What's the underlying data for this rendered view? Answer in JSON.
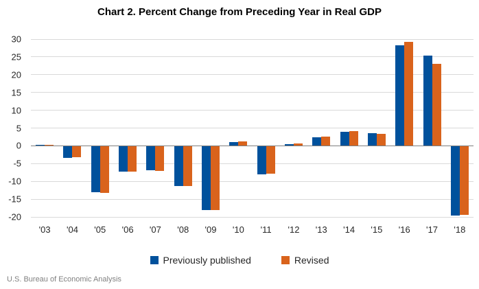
{
  "title": "Chart 2. Percent Change from Preceding Year in Real GDP",
  "footer": "U.S. Bureau of Economic Analysis",
  "colors": {
    "previously_published": "#00519C",
    "revised": "#D9631C",
    "gridline": "#D9D9D9",
    "zero_line": "#7F7F7F",
    "axis_text": "#262626",
    "footer_text": "#808080"
  },
  "legend": {
    "items": [
      {
        "label": "Previously published",
        "color": "#00519C"
      },
      {
        "label": "Revised",
        "color": "#D9631C"
      }
    ]
  },
  "chart_data": {
    "type": "bar",
    "title": "Chart 2. Percent Change from Preceding Year in Real GDP",
    "xlabel": "",
    "ylabel": "",
    "categories": [
      "'03",
      "'04",
      "'05",
      "'06",
      "'07",
      "'08",
      "'09",
      "'10",
      "'11",
      "'12",
      "'13",
      "'14",
      "'15",
      "'16",
      "'17",
      "'18"
    ],
    "series": [
      {
        "name": "Previously published",
        "color": "#00519C",
        "values": [
          0.3,
          -3.4,
          -13.0,
          -7.2,
          -6.8,
          -11.3,
          -18.0,
          1.1,
          -8.0,
          0.4,
          2.3,
          3.9,
          3.5,
          28.2,
          25.4,
          -19.7
        ]
      },
      {
        "name": "Revised",
        "color": "#D9631C",
        "values": [
          0.3,
          -3.2,
          -13.2,
          -7.2,
          -7.0,
          -11.3,
          -18.0,
          1.3,
          -7.9,
          0.7,
          2.6,
          4.2,
          3.3,
          29.3,
          23.0,
          -19.5
        ]
      }
    ],
    "ylim": [
      -20,
      30
    ],
    "ytick_interval": 5,
    "yticks": [
      30,
      25,
      20,
      15,
      10,
      5,
      0,
      -5,
      -10,
      -15,
      -20
    ],
    "grid": true,
    "legend_position": "bottom"
  }
}
